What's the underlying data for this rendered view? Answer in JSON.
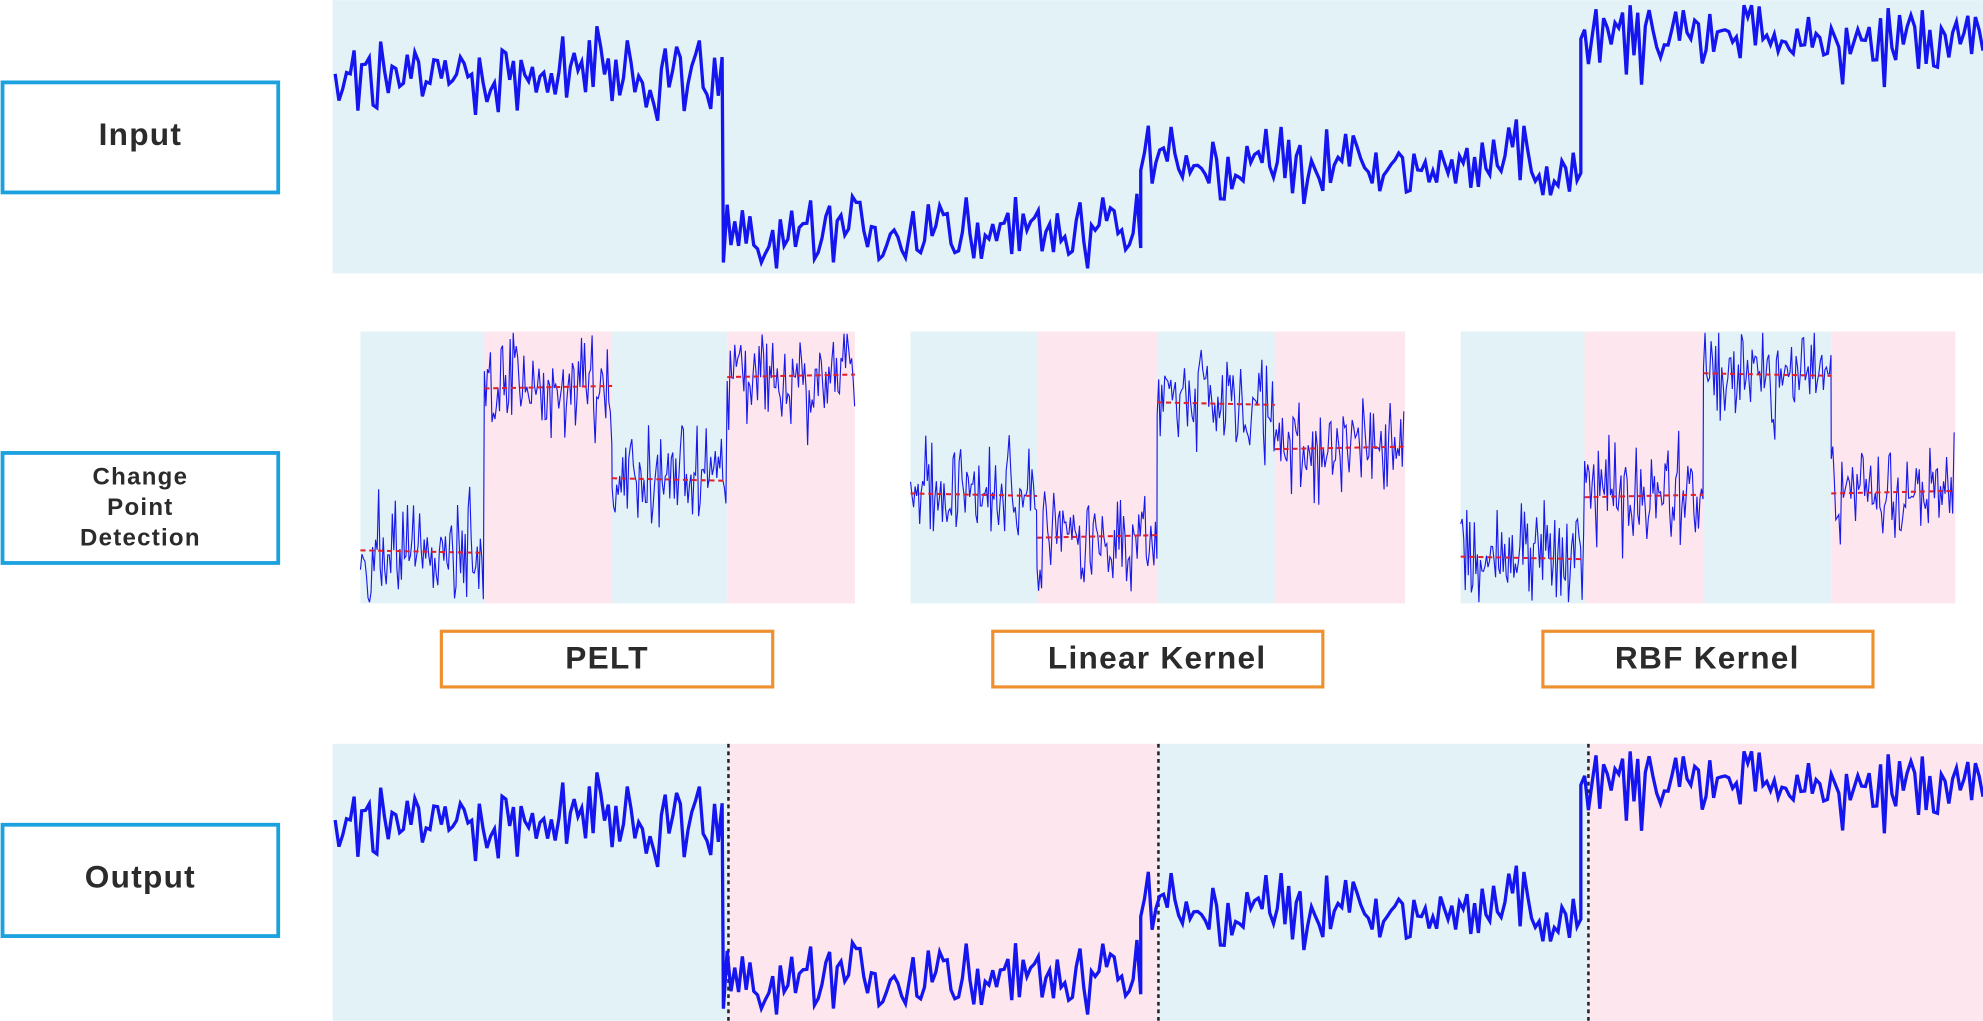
{
  "input_label": "Input",
  "detection_label": [
    "Change",
    "Point",
    "Detection"
  ],
  "methods": [
    "PELT",
    "Linear Kernel",
    "RBF Kernel"
  ],
  "output_label": "Output"
}
